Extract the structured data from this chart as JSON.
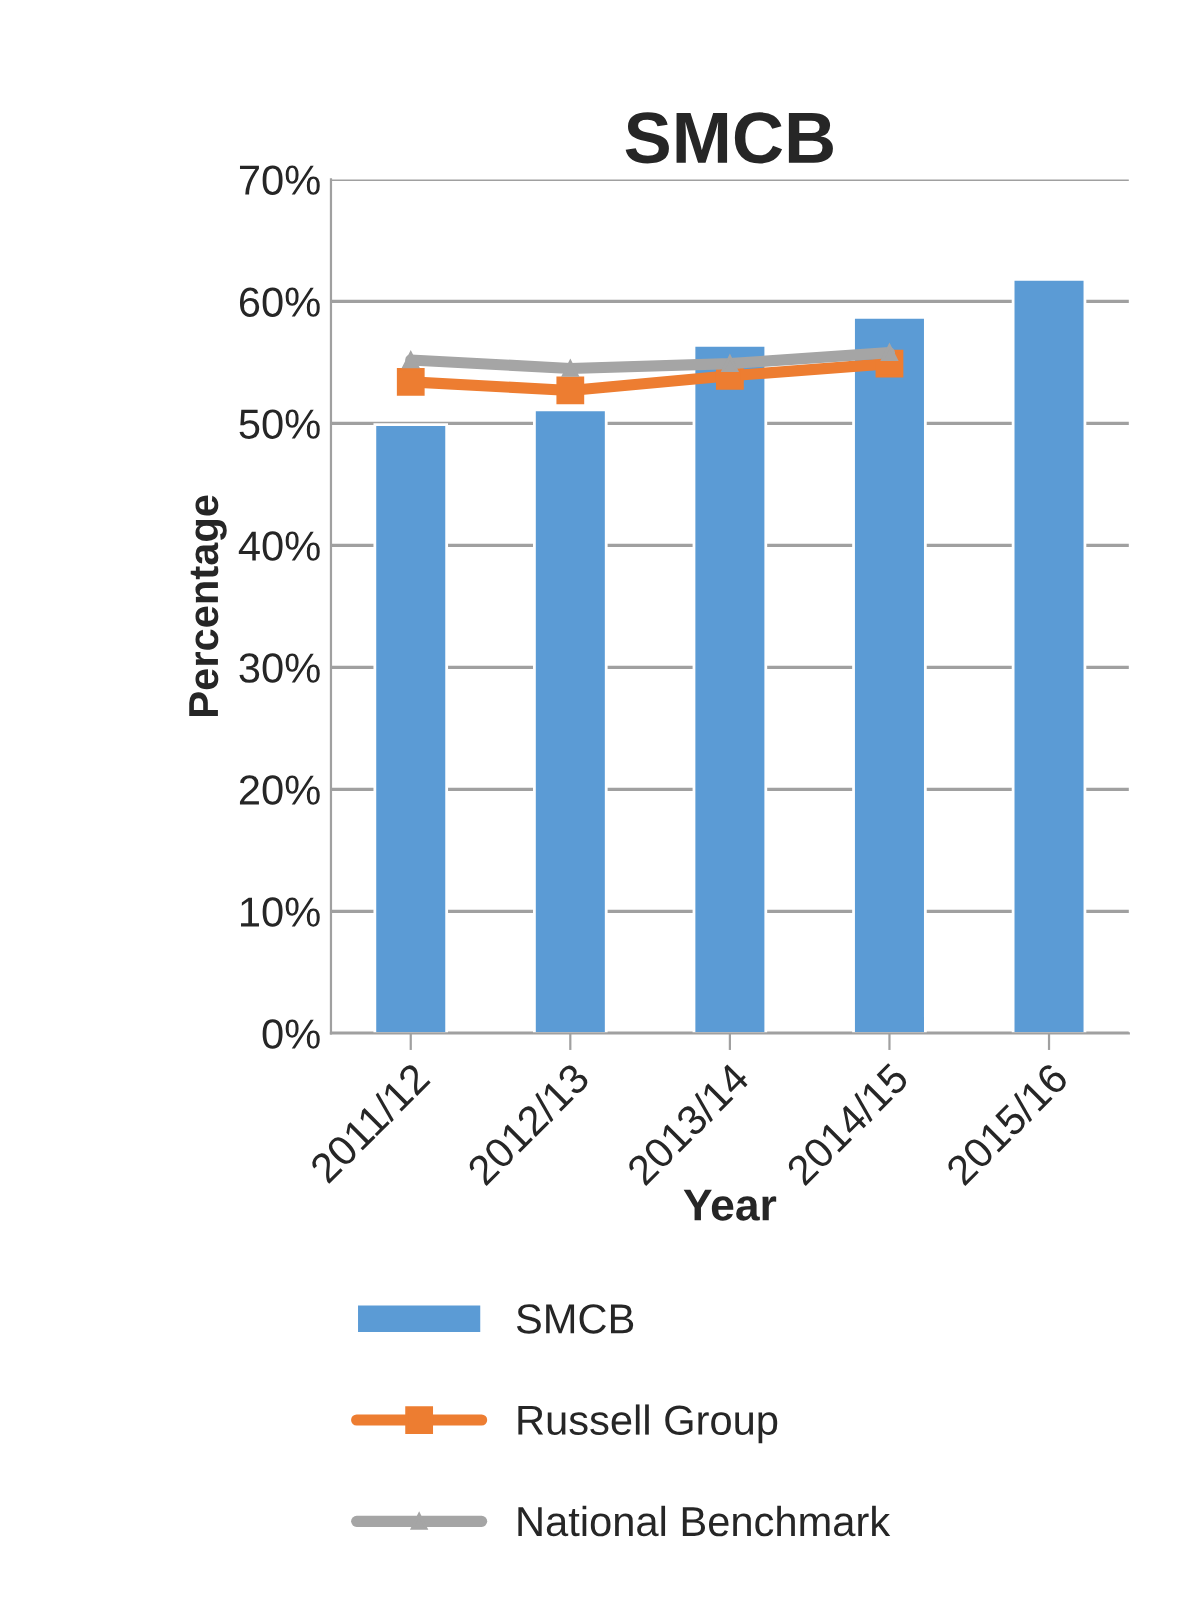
{
  "chart_data": {
    "type": "bar",
    "title": "SMCB",
    "xlabel": "Year",
    "ylabel": "Percentage",
    "categories": [
      "2011/12",
      "2012/13",
      "2013/14",
      "2014/15",
      "2015/16"
    ],
    "series": [
      {
        "name": "SMCB",
        "color": "#5b9bd5",
        "values": [
          49.9,
          51.1,
          56.4,
          58.7,
          61.8
        ]
      },
      {
        "name": "Russell Group",
        "type": "line",
        "color": "#ed7d31",
        "marker": "square",
        "line_style": "solid",
        "values": [
          53.4,
          52.7,
          53.9,
          54.9,
          null
        ]
      },
      {
        "name": "National Benchmark",
        "type": "line",
        "color": "#a5a5a5",
        "marker": "triangle",
        "line_style": "solid",
        "values": [
          55.2,
          54.5,
          54.9,
          55.8,
          null
        ]
      }
    ],
    "ylim": [
      0,
      70
    ],
    "yticks": [
      {
        "value": 0,
        "label": "0%"
      },
      {
        "value": 10,
        "label": "10%"
      },
      {
        "value": 20,
        "label": "20%"
      },
      {
        "value": 30,
        "label": "30%"
      },
      {
        "value": 40,
        "label": "40%"
      },
      {
        "value": 50,
        "label": "50%"
      },
      {
        "value": 60,
        "label": "60%"
      },
      {
        "value": 70,
        "label": "70%"
      }
    ],
    "grid": "y",
    "legend": "bottom"
  }
}
